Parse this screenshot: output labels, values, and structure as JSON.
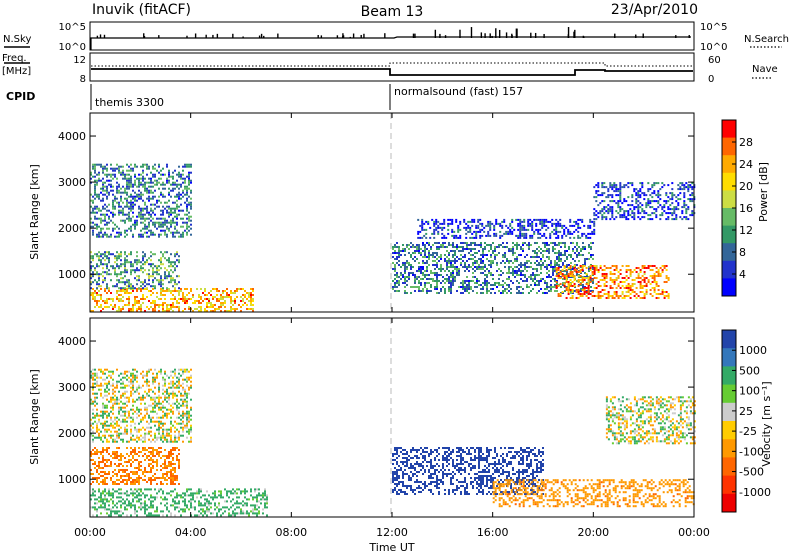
{
  "header": {
    "station": "Inuvik (fitACF)",
    "beam": "Beam 13",
    "date": "23/Apr/2010"
  },
  "nsky_panel": {
    "left_label": "N.Sky",
    "right_label": "N.Search",
    "left_ticks": [
      "10^5",
      "10^0"
    ],
    "right_ticks": [
      "10^5",
      "10^0"
    ]
  },
  "freq_panel": {
    "left_label_1": "Freq.",
    "left_label_2": "[MHz]",
    "right_label": "Nave",
    "left_ticks": [
      "12",
      "8"
    ],
    "right_ticks": [
      "60",
      "0"
    ]
  },
  "cpid_panel": {
    "label": "CPID",
    "program_1": "themis 3300",
    "program_2": "normalsound (fast) 157"
  },
  "power_panel": {
    "ylabel": "Slant Range [km]",
    "colorbar_label": "Power [dB]",
    "colorbar_ticks": [
      "28",
      "24",
      "20",
      "16",
      "12",
      "8",
      "4"
    ],
    "colorbar_colors": [
      "#ff0000",
      "#ff6600",
      "#ffaa00",
      "#ffdd00",
      "#ccdd44",
      "#66bb66",
      "#339966",
      "#336699",
      "#2233cc",
      "#0000ff"
    ]
  },
  "velocity_panel": {
    "ylabel": "Slant Range [km]",
    "colorbar_label": "Velocity [m s⁻¹]",
    "colorbar_ticks": [
      "1000",
      "500",
      "100",
      "25",
      "-25",
      "-100",
      "-500",
      "-1000"
    ],
    "colorbar_colors": [
      "#2244aa",
      "#3377bb",
      "#33aa66",
      "#66cc33",
      "#cccccc",
      "#ffcc00",
      "#ff9900",
      "#ff6600",
      "#ff3300",
      "#ee0000"
    ]
  },
  "xaxis": {
    "label": "Time UT",
    "ticks": [
      "00:00",
      "04:00",
      "08:00",
      "12:00",
      "16:00",
      "20:00",
      "00:00"
    ]
  },
  "chart_data": [
    {
      "type": "heatmap",
      "title": "",
      "xlabel": "Time UT",
      "ylabel": "Slant Range [km]",
      "xlim": [
        0,
        24
      ],
      "ylim": [
        180,
        4500
      ],
      "yticks": [
        1000,
        2000,
        3000,
        4000
      ],
      "colorbar": {
        "label": "Power [dB]",
        "ticks": [
          28,
          24,
          20,
          16,
          12,
          8,
          4
        ]
      },
      "regions": [
        {
          "t0": 0.0,
          "t1": 6.5,
          "r0": 200,
          "r1": 700,
          "value": 24
        },
        {
          "t0": 0.0,
          "t1": 3.5,
          "r0": 700,
          "r1": 1500,
          "value": 12
        },
        {
          "t0": 0.0,
          "t1": 4.0,
          "r0": 1800,
          "r1": 3400,
          "value": 10
        },
        {
          "t0": 12.0,
          "t1": 20.0,
          "r0": 600,
          "r1": 1700,
          "value": 10
        },
        {
          "t0": 13.0,
          "t1": 20.0,
          "r0": 1800,
          "r1": 2200,
          "value": 5
        },
        {
          "t0": 18.5,
          "t1": 23.0,
          "r0": 500,
          "r1": 1200,
          "value": 27
        },
        {
          "t0": 20.0,
          "t1": 24.0,
          "r0": 2200,
          "r1": 3000,
          "value": 6
        }
      ]
    },
    {
      "type": "heatmap",
      "title": "",
      "xlabel": "Time UT",
      "ylabel": "Slant Range [km]",
      "xlim": [
        0,
        24
      ],
      "ylim": [
        180,
        4500
      ],
      "yticks": [
        1000,
        2000,
        3000,
        4000
      ],
      "colorbar": {
        "label": "Velocity [m s⁻¹]",
        "ticks": [
          1000,
          500,
          100,
          25,
          -25,
          -100,
          -500,
          -1000
        ]
      },
      "regions": [
        {
          "t0": 0.0,
          "t1": 4.0,
          "r0": 1800,
          "r1": 3400,
          "value": 0
        },
        {
          "t0": 0.0,
          "t1": 3.5,
          "r0": 900,
          "r1": 1700,
          "value": -300
        },
        {
          "t0": 0.0,
          "t1": 7.0,
          "r0": 200,
          "r1": 800,
          "value": 120
        },
        {
          "t0": 12.0,
          "t1": 18.0,
          "r0": 700,
          "r1": 1700,
          "value": 900
        },
        {
          "t0": 16.0,
          "t1": 24.0,
          "r0": 400,
          "r1": 1000,
          "value": -200
        },
        {
          "t0": 20.5,
          "t1": 24.0,
          "r0": 1800,
          "r1": 2800,
          "value": 0
        }
      ]
    }
  ]
}
